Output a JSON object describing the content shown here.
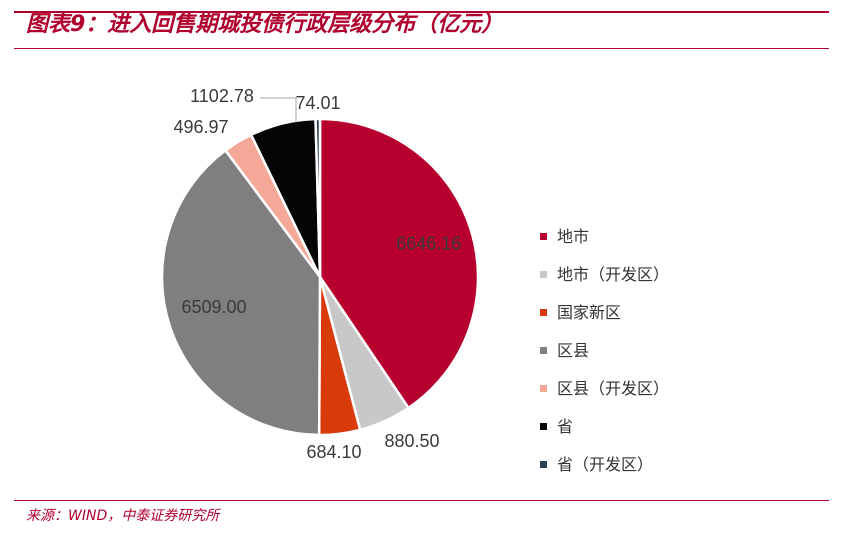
{
  "title": "图表9：进入回售期城投债行政层级分布（亿元）",
  "source": "来源：WIND，中泰证券研究所",
  "chart_data": {
    "type": "pie",
    "title": "图表9：进入回售期城投债行政层级分布（亿元）",
    "start": "12 o'clock, clockwise",
    "legend_position": "right",
    "slices": [
      {
        "name": "地市",
        "value": 6646.16,
        "label": "6646.16",
        "color": "#b8002f"
      },
      {
        "name": "地市（开发区）",
        "value": 880.5,
        "label": "880.50",
        "color": "#c8c8c8"
      },
      {
        "name": "国家新区",
        "value": 684.1,
        "label": "684.10",
        "color": "#d83a0a"
      },
      {
        "name": "区县",
        "value": 6509.0,
        "label": "6509.00",
        "color": "#7f7f7f"
      },
      {
        "name": "区县（开发区）",
        "value": 496.97,
        "label": "496.97",
        "color": "#f5a898"
      },
      {
        "name": "省",
        "value": 1102.78,
        "label": "1102.78",
        "color": "#050505"
      },
      {
        "name": "省（开发区）",
        "value": 74.01,
        "label": "74.01",
        "color": "#2f3f5c"
      }
    ]
  }
}
